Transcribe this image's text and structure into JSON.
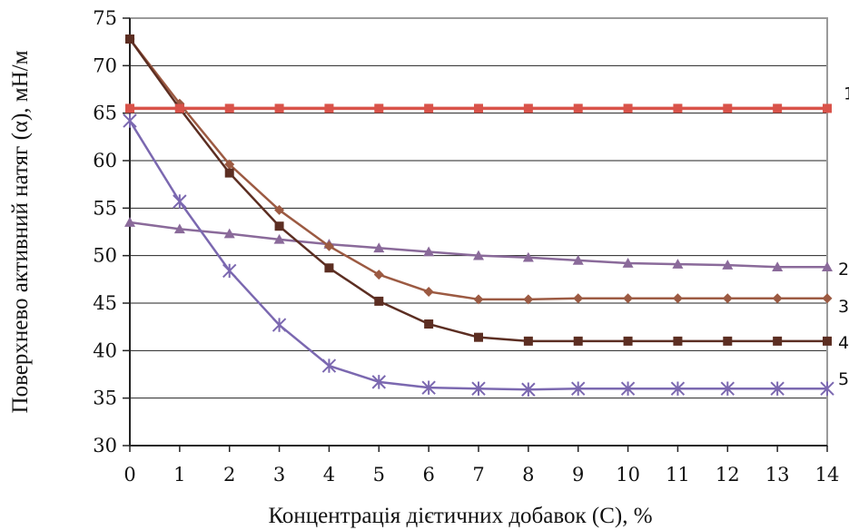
{
  "chart_data": {
    "type": "line",
    "title": "",
    "xlabel": "Концентрація дієтичних добавок (С), %",
    "ylabel": "Поверхнево активний натяг (α), мН/м",
    "xlim": [
      0,
      14
    ],
    "ylim": [
      30,
      75
    ],
    "x_ticks": [
      "0",
      "1",
      "2",
      "3",
      "4",
      "5",
      "6",
      "7",
      "8",
      "9",
      "10",
      "11",
      "12",
      "13",
      "14"
    ],
    "y_ticks": [
      "30",
      "35",
      "40",
      "45",
      "50",
      "55",
      "60",
      "65",
      "70",
      "75"
    ],
    "grid": "horizontal",
    "legend": "none",
    "x": [
      0,
      1,
      2,
      3,
      4,
      5,
      6,
      7,
      8,
      9,
      10,
      11,
      12,
      13,
      14
    ],
    "series": [
      {
        "label": "1",
        "marker": "square",
        "color": "#d9534a",
        "values": [
          65.5,
          65.5,
          65.5,
          65.5,
          65.5,
          65.5,
          65.5,
          65.5,
          65.5,
          65.5,
          65.5,
          65.5,
          65.5,
          65.5,
          65.5
        ]
      },
      {
        "label": "2",
        "marker": "triangle",
        "color": "#8a6a9a",
        "values": [
          53.5,
          52.8,
          52.3,
          51.7,
          51.2,
          50.8,
          50.4,
          50.0,
          49.8,
          49.5,
          49.2,
          49.1,
          49.0,
          48.8,
          48.8
        ]
      },
      {
        "label": "3",
        "marker": "diamond",
        "color": "#9c5a42",
        "values": [
          72.8,
          66.0,
          59.6,
          54.8,
          51.0,
          48.0,
          46.2,
          45.4,
          45.4,
          45.5,
          45.5,
          45.5,
          45.5,
          45.5,
          45.5
        ]
      },
      {
        "label": "4",
        "marker": "square",
        "color": "#5c2e22",
        "values": [
          72.8,
          65.5,
          58.7,
          53.1,
          48.7,
          45.2,
          42.8,
          41.4,
          41.0,
          41.0,
          41.0,
          41.0,
          41.0,
          41.0,
          41.0
        ]
      },
      {
        "label": "5",
        "marker": "star",
        "color": "#7b68b0",
        "values": [
          64.2,
          55.7,
          48.4,
          42.7,
          38.4,
          36.7,
          36.1,
          36.0,
          35.9,
          36.0,
          36.0,
          36.0,
          36.0,
          36.0,
          36.0
        ]
      }
    ]
  }
}
